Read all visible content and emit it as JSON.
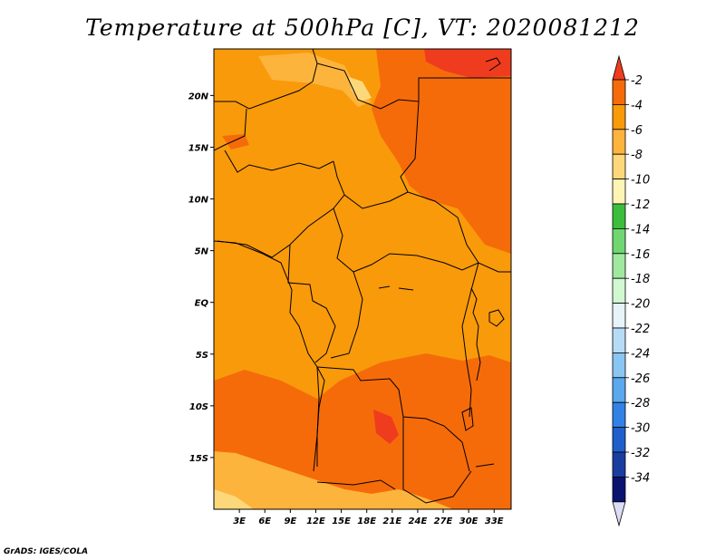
{
  "title": "Temperature at 500hPa [C], VT: 2020081212",
  "credit": "GrADS: IGES/COLA",
  "lat_labels": [
    "20N",
    "15N",
    "10N",
    "5N",
    "EQ",
    "5S",
    "10S",
    "15S"
  ],
  "lon_labels": [
    "3E",
    "6E",
    "9E",
    "12E",
    "15E",
    "18E",
    "21E",
    "24E",
    "27E",
    "30E",
    "33E"
  ],
  "map_extent": {
    "lon": [
      0,
      35
    ],
    "lat": [
      -20,
      24.5
    ]
  },
  "colorbar": {
    "labels": [
      "-2",
      "-4",
      "-6",
      "-8",
      "-10",
      "-12",
      "-14",
      "-16",
      "-18",
      "-20",
      "-22",
      "-24",
      "-26",
      "-28",
      "-30",
      "-32",
      "-34"
    ],
    "colors": [
      "#f03c1e",
      "#f56b0a",
      "#f99a0a",
      "#fdb43c",
      "#fdd87a",
      "#fef4b4",
      "#3cbe3c",
      "#70d670",
      "#a0e8a0",
      "#d2f8d2",
      "#e6f4fa",
      "#b6dcf5",
      "#8ac6f2",
      "#5aa8ee",
      "#3282e6",
      "#1f5fcc",
      "#1a3ea0",
      "#0a1470",
      "#dcdcf5"
    ]
  },
  "field_colors": {
    "warm": "#f56b0a",
    "base": "#f99a0a",
    "cool": "#fdb43c",
    "coldest": "#fdd87a",
    "hot": "#f03c1e"
  }
}
